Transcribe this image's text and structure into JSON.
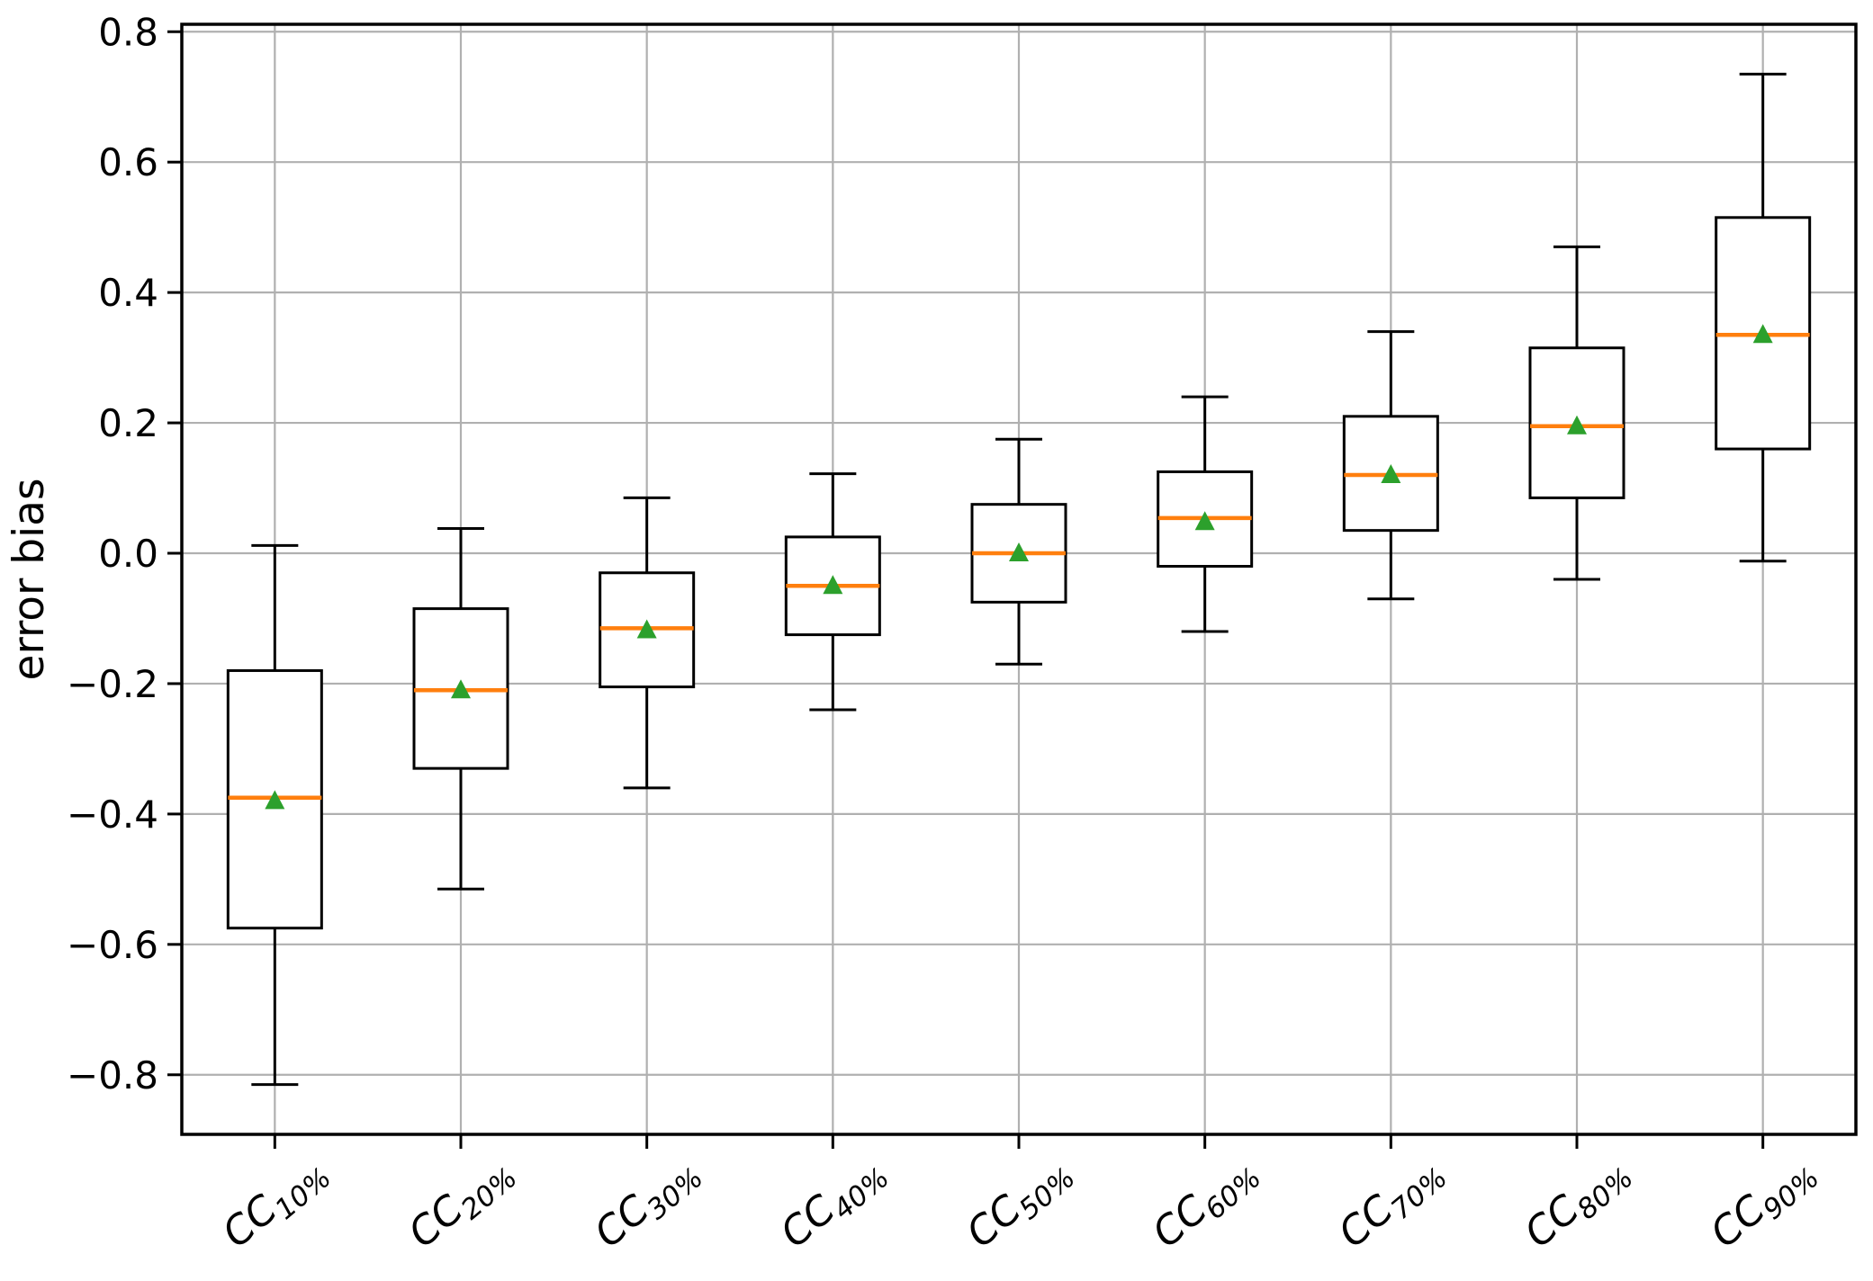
{
  "chart_data": {
    "type": "box",
    "title": "",
    "xlabel": "",
    "ylabel": "error bias",
    "grid": true,
    "legend_position": "none",
    "ylim": [
      -0.8914,
      0.8114
    ],
    "yticks": [
      {
        "value": 0.8,
        "label": "0.8"
      },
      {
        "value": 0.6,
        "label": "0.6"
      },
      {
        "value": 0.4,
        "label": "0.4"
      },
      {
        "value": 0.2,
        "label": "0.2"
      },
      {
        "value": 0.0,
        "label": "0.0"
      },
      {
        "value": -0.2,
        "label": "−0.2"
      },
      {
        "value": -0.4,
        "label": "−0.4"
      },
      {
        "value": -0.6,
        "label": "−0.6"
      },
      {
        "value": -0.8,
        "label": "−0.8"
      }
    ],
    "x_tick_label_rotation_deg": 40,
    "mean_marker_shape": "triangle-up",
    "categories": [
      {
        "label": "CC10%",
        "base": "CC",
        "sub": "10%"
      },
      {
        "label": "CC20%",
        "base": "CC",
        "sub": "20%"
      },
      {
        "label": "CC30%",
        "base": "CC",
        "sub": "30%"
      },
      {
        "label": "CC40%",
        "base": "CC",
        "sub": "40%"
      },
      {
        "label": "CC50%",
        "base": "CC",
        "sub": "50%"
      },
      {
        "label": "CC60%",
        "base": "CC",
        "sub": "60%"
      },
      {
        "label": "CC70%",
        "base": "CC",
        "sub": "70%"
      },
      {
        "label": "CC80%",
        "base": "CC",
        "sub": "80%"
      },
      {
        "label": "CC90%",
        "base": "CC",
        "sub": "90%"
      }
    ],
    "boxes": [
      {
        "category": "CC10%",
        "whisker_low": -0.815,
        "q1": -0.575,
        "median": -0.375,
        "mean": -0.38,
        "q3": -0.18,
        "whisker_high": 0.012
      },
      {
        "category": "CC20%",
        "whisker_low": -0.515,
        "q1": -0.33,
        "median": -0.21,
        "mean": -0.21,
        "q3": -0.085,
        "whisker_high": 0.038
      },
      {
        "category": "CC30%",
        "whisker_low": -0.36,
        "q1": -0.205,
        "median": -0.115,
        "mean": -0.118,
        "q3": -0.03,
        "whisker_high": 0.085
      },
      {
        "category": "CC40%",
        "whisker_low": -0.24,
        "q1": -0.125,
        "median": -0.05,
        "mean": -0.05,
        "q3": 0.025,
        "whisker_high": 0.122
      },
      {
        "category": "CC50%",
        "whisker_low": -0.17,
        "q1": -0.075,
        "median": 0.0,
        "mean": 0.0,
        "q3": 0.075,
        "whisker_high": 0.175
      },
      {
        "category": "CC60%",
        "whisker_low": -0.12,
        "q1": -0.02,
        "median": 0.054,
        "mean": 0.048,
        "q3": 0.125,
        "whisker_high": 0.24
      },
      {
        "category": "CC70%",
        "whisker_low": -0.07,
        "q1": 0.035,
        "median": 0.12,
        "mean": 0.12,
        "q3": 0.21,
        "whisker_high": 0.34
      },
      {
        "category": "CC80%",
        "whisker_low": -0.04,
        "q1": 0.085,
        "median": 0.195,
        "mean": 0.195,
        "q3": 0.315,
        "whisker_high": 0.47
      },
      {
        "category": "CC90%",
        "whisker_low": -0.012,
        "q1": 0.16,
        "median": 0.335,
        "mean": 0.335,
        "q3": 0.515,
        "whisker_high": 0.735
      }
    ],
    "colors": {
      "box_line": "#000000",
      "whisker_line": "#000000",
      "median": "#ff7f0e",
      "mean_marker": "#2ca02c",
      "grid": "#b0b0b0",
      "spine": "#000000",
      "background": "#ffffff",
      "text": "#000000"
    }
  }
}
